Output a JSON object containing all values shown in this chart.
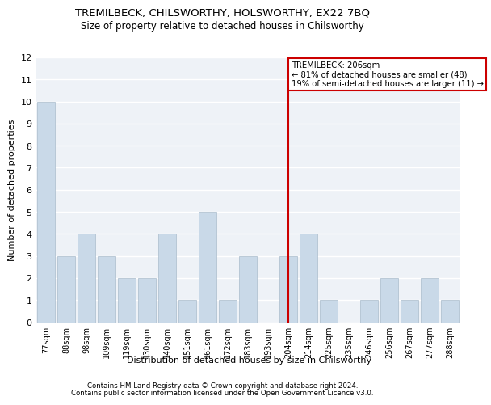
{
  "title": "TREMILBECK, CHILSWORTHY, HOLSWORTHY, EX22 7BQ",
  "subtitle": "Size of property relative to detached houses in Chilsworthy",
  "xlabel": "Distribution of detached houses by size in Chilsworthy",
  "ylabel": "Number of detached properties",
  "categories": [
    "77sqm",
    "88sqm",
    "98sqm",
    "109sqm",
    "119sqm",
    "130sqm",
    "140sqm",
    "151sqm",
    "161sqm",
    "172sqm",
    "183sqm",
    "193sqm",
    "204sqm",
    "214sqm",
    "225sqm",
    "235sqm",
    "246sqm",
    "256sqm",
    "267sqm",
    "277sqm",
    "288sqm"
  ],
  "values": [
    10,
    3,
    4,
    3,
    2,
    2,
    4,
    1,
    5,
    1,
    3,
    0,
    3,
    4,
    1,
    0,
    1,
    2,
    1,
    2,
    1
  ],
  "bar_color": "#c9d9e8",
  "bar_edge_color": "#aabccc",
  "background_color": "#eef2f7",
  "grid_color": "#ffffff",
  "vline_x_index": 12,
  "vline_color": "#cc0000",
  "annotation_title": "TREMILBECK: 206sqm",
  "annotation_line1": "← 81% of detached houses are smaller (48)",
  "annotation_line2": "19% of semi-detached houses are larger (11) →",
  "annotation_box_color": "#cc0000",
  "ylim": [
    0,
    12
  ],
  "yticks": [
    0,
    1,
    2,
    3,
    4,
    5,
    6,
    7,
    8,
    9,
    10,
    11,
    12
  ],
  "footer1": "Contains HM Land Registry data © Crown copyright and database right 2024.",
  "footer2": "Contains public sector information licensed under the Open Government Licence v3.0."
}
